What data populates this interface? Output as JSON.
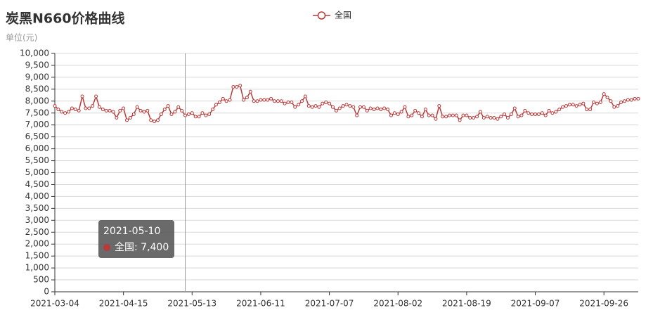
{
  "chart_data": {
    "type": "line",
    "title": "炭黑N660价格曲线",
    "y_label": "单位(元)",
    "categories": [
      "2021-03-04",
      null,
      null,
      null,
      null,
      null,
      null,
      null,
      null,
      null,
      null,
      null,
      null,
      null,
      null,
      null,
      null,
      null,
      null,
      null,
      "2021-04-15",
      null,
      null,
      null,
      null,
      null,
      null,
      null,
      null,
      null,
      null,
      null,
      null,
      null,
      null,
      null,
      null,
      null,
      null,
      null,
      "2021-05-13",
      null,
      null,
      null,
      null,
      null,
      null,
      null,
      null,
      null,
      null,
      null,
      null,
      null,
      null,
      null,
      null,
      null,
      null,
      null,
      "2021-06-11",
      null,
      null,
      null,
      null,
      null,
      null,
      null,
      null,
      null,
      null,
      null,
      null,
      null,
      null,
      null,
      null,
      null,
      null,
      null,
      "2021-07-07",
      null,
      null,
      null,
      null,
      null,
      null,
      null,
      null,
      null,
      null,
      null,
      null,
      null,
      null,
      null,
      null,
      null,
      null,
      null,
      "2021-08-02",
      null,
      null,
      null,
      null,
      null,
      null,
      null,
      null,
      null,
      null,
      null,
      null,
      null,
      null,
      null,
      null,
      null,
      null,
      null,
      "2021-08-19",
      null,
      null,
      null,
      null,
      null,
      null,
      null,
      null,
      null,
      null,
      null,
      null,
      null,
      null,
      null,
      null,
      null,
      null,
      null,
      "2021-09-07",
      null,
      null,
      null,
      null,
      null,
      null,
      null,
      null,
      null,
      null,
      null,
      null,
      null,
      null,
      null,
      null,
      null,
      null,
      null,
      "2021-09-26",
      null,
      null,
      null,
      null,
      null,
      null,
      null,
      null,
      null,
      null
    ],
    "series": [
      {
        "name": "全国",
        "color": "#b83a3a",
        "values": [
          7800,
          7650,
          7550,
          7500,
          7550,
          7700,
          7650,
          7600,
          8200,
          7700,
          7700,
          7800,
          8200,
          7750,
          7650,
          7600,
          7600,
          7550,
          7300,
          7600,
          7700,
          7200,
          7300,
          7450,
          7750,
          7600,
          7550,
          7600,
          7200,
          7150,
          7200,
          7450,
          7650,
          7800,
          7450,
          7550,
          7750,
          7600,
          7400,
          7450,
          7500,
          7350,
          7350,
          7500,
          7400,
          7450,
          7650,
          7850,
          7950,
          8100,
          8000,
          8050,
          8600,
          8600,
          8650,
          8050,
          8150,
          8400,
          8000,
          8000,
          8050,
          8050,
          8050,
          8100,
          8000,
          8000,
          8000,
          7900,
          7950,
          7950,
          7750,
          7850,
          8000,
          8200,
          7800,
          7750,
          7800,
          7750,
          7900,
          7950,
          7900,
          7750,
          7600,
          7700,
          7800,
          7850,
          7800,
          7750,
          7400,
          7750,
          7750,
          7600,
          7700,
          7650,
          7700,
          7650,
          7700,
          7650,
          7400,
          7500,
          7450,
          7550,
          7750,
          7350,
          7400,
          7600,
          7500,
          7350,
          7650,
          7400,
          7400,
          7250,
          7800,
          7350,
          7350,
          7400,
          7400,
          7400,
          7200,
          7400,
          7400,
          7300,
          7300,
          7350,
          7550,
          7300,
          7350,
          7300,
          7300,
          7250,
          7350,
          7450,
          7300,
          7450,
          7700,
          7350,
          7400,
          7600,
          7500,
          7450,
          7450,
          7450,
          7500,
          7400,
          7600,
          7500,
          7550,
          7650,
          7750,
          7800,
          7850,
          7850,
          7800,
          7850,
          7900,
          7650,
          7650,
          7950,
          7900,
          7950,
          8300,
          8150,
          8000,
          7750,
          7800,
          7950,
          8000,
          8050,
          8050,
          8100,
          8100
        ]
      }
    ],
    "ylim": [
      0,
      10000
    ],
    "yticks": [
      0,
      500,
      {
        "value": 1000,
        "label": "1,000"
      },
      {
        "value": 1500,
        "label": "1,500"
      },
      {
        "value": 2000,
        "label": "2,000"
      },
      {
        "value": 2500,
        "label": "2,500"
      },
      {
        "value": 3000,
        "label": "3,000"
      },
      {
        "value": 3500,
        "label": "3,500"
      },
      {
        "value": 4000,
        "label": "4,000"
      },
      {
        "value": 4500,
        "label": "4,500"
      },
      {
        "value": 5000,
        "label": "5,000"
      },
      {
        "value": 5500,
        "label": "5,500"
      },
      {
        "value": 6000,
        "label": "6,000"
      },
      {
        "value": 6500,
        "label": "6,500"
      },
      {
        "value": 7000,
        "label": "7,000"
      },
      {
        "value": 7500,
        "label": "7,500"
      },
      {
        "value": 8000,
        "label": "8,000"
      },
      {
        "value": 8500,
        "label": "8,500"
      },
      {
        "value": 9000,
        "label": "9,000"
      },
      {
        "value": 9500,
        "label": "9,500"
      },
      {
        "value": 10000,
        "label": "10,000"
      }
    ],
    "grid": true,
    "tooltip": {
      "title": "2021-05-10",
      "text": "全国: 7,400"
    }
  }
}
